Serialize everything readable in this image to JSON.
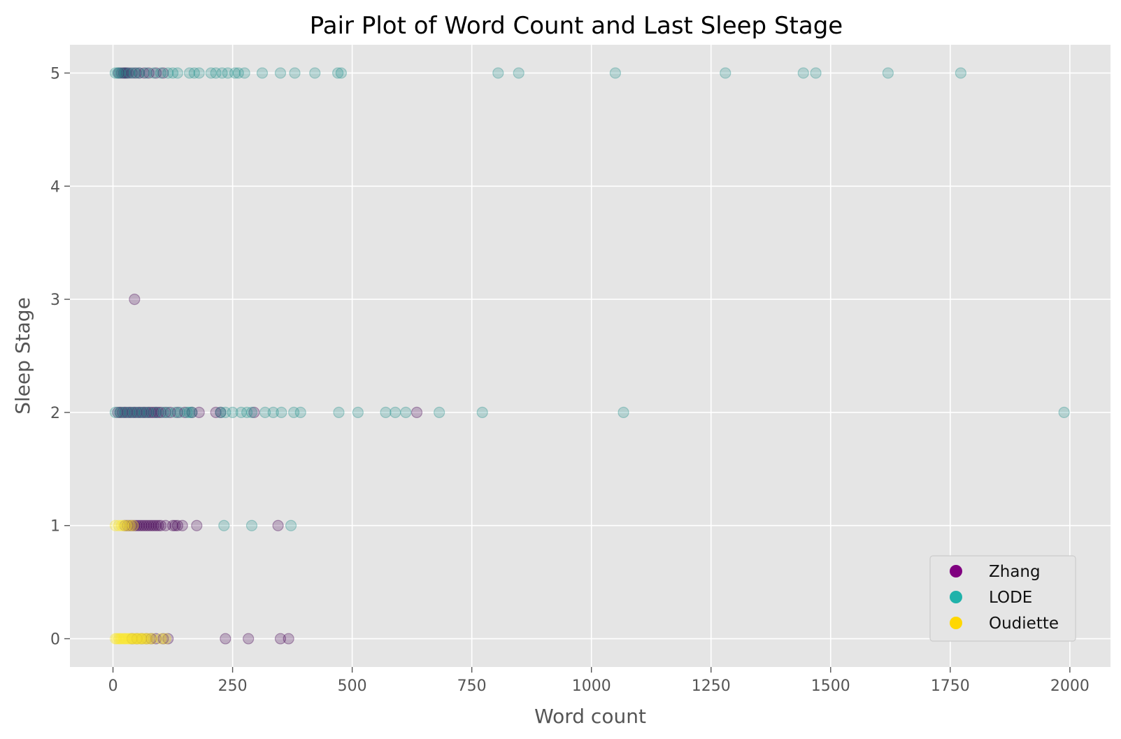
{
  "chart_data": {
    "type": "scatter",
    "title": "Pair Plot of Word Count and Last Sleep Stage",
    "xlabel": "Word count",
    "ylabel": "Sleep Stage",
    "xlim": [
      -90,
      2085
    ],
    "ylim": [
      -0.25,
      5.25
    ],
    "xticks": [
      0,
      250,
      500,
      750,
      1000,
      1250,
      1500,
      1750,
      2000
    ],
    "yticks": [
      0,
      1,
      2,
      3,
      4,
      5
    ],
    "grid": true,
    "background": "#e5e5e5",
    "legend_position": "lower-right",
    "point_alpha": 0.25,
    "series": [
      {
        "name": "Zhang",
        "color": "#800080",
        "marker_color": "#440154",
        "points": [
          [
            12,
            5
          ],
          [
            18,
            5
          ],
          [
            22,
            5
          ],
          [
            25,
            5
          ],
          [
            28,
            5
          ],
          [
            32,
            5
          ],
          [
            40,
            5
          ],
          [
            48,
            5
          ],
          [
            55,
            5
          ],
          [
            65,
            5
          ],
          [
            75,
            5
          ],
          [
            90,
            5
          ],
          [
            105,
            5
          ],
          [
            45,
            3
          ],
          [
            10,
            2
          ],
          [
            15,
            2
          ],
          [
            20,
            2
          ],
          [
            25,
            2
          ],
          [
            30,
            2
          ],
          [
            35,
            2
          ],
          [
            40,
            2
          ],
          [
            45,
            2
          ],
          [
            50,
            2
          ],
          [
            55,
            2
          ],
          [
            60,
            2
          ],
          [
            65,
            2
          ],
          [
            70,
            2
          ],
          [
            75,
            2
          ],
          [
            80,
            2
          ],
          [
            85,
            2
          ],
          [
            90,
            2
          ],
          [
            95,
            2
          ],
          [
            100,
            2
          ],
          [
            110,
            2
          ],
          [
            120,
            2
          ],
          [
            135,
            2
          ],
          [
            150,
            2
          ],
          [
            165,
            2
          ],
          [
            180,
            2
          ],
          [
            215,
            2
          ],
          [
            225,
            2
          ],
          [
            295,
            2
          ],
          [
            635,
            2
          ],
          [
            25,
            1
          ],
          [
            30,
            1
          ],
          [
            35,
            1
          ],
          [
            40,
            1
          ],
          [
            45,
            1
          ],
          [
            50,
            1
          ],
          [
            55,
            1
          ],
          [
            60,
            1
          ],
          [
            65,
            1
          ],
          [
            70,
            1
          ],
          [
            75,
            1
          ],
          [
            80,
            1
          ],
          [
            85,
            1
          ],
          [
            90,
            1
          ],
          [
            95,
            1
          ],
          [
            100,
            1
          ],
          [
            110,
            1
          ],
          [
            125,
            1
          ],
          [
            130,
            1
          ],
          [
            135,
            1
          ],
          [
            145,
            1
          ],
          [
            175,
            1
          ],
          [
            345,
            1
          ],
          [
            40,
            0
          ],
          [
            50,
            0
          ],
          [
            60,
            0
          ],
          [
            70,
            0
          ],
          [
            80,
            0
          ],
          [
            90,
            0
          ],
          [
            105,
            0
          ],
          [
            115,
            0
          ],
          [
            235,
            0
          ],
          [
            283,
            0
          ],
          [
            350,
            0
          ],
          [
            367,
            0
          ]
        ]
      },
      {
        "name": "LODE",
        "color": "#20b2aa",
        "marker_color": "#21918c",
        "points": [
          [
            5,
            5
          ],
          [
            10,
            5
          ],
          [
            15,
            5
          ],
          [
            25,
            5
          ],
          [
            35,
            5
          ],
          [
            45,
            5
          ],
          [
            55,
            5
          ],
          [
            70,
            5
          ],
          [
            85,
            5
          ],
          [
            100,
            5
          ],
          [
            115,
            5
          ],
          [
            125,
            5
          ],
          [
            135,
            5
          ],
          [
            160,
            5
          ],
          [
            170,
            5
          ],
          [
            180,
            5
          ],
          [
            205,
            5
          ],
          [
            215,
            5
          ],
          [
            228,
            5
          ],
          [
            240,
            5
          ],
          [
            255,
            5
          ],
          [
            262,
            5
          ],
          [
            275,
            5
          ],
          [
            312,
            5
          ],
          [
            350,
            5
          ],
          [
            380,
            5
          ],
          [
            422,
            5
          ],
          [
            470,
            5
          ],
          [
            477,
            5
          ],
          [
            805,
            5
          ],
          [
            848,
            5
          ],
          [
            1050,
            5
          ],
          [
            1280,
            5
          ],
          [
            1443,
            5
          ],
          [
            1469,
            5
          ],
          [
            1620,
            5
          ],
          [
            1772,
            5
          ],
          [
            5,
            2
          ],
          [
            15,
            2
          ],
          [
            25,
            2
          ],
          [
            35,
            2
          ],
          [
            45,
            2
          ],
          [
            55,
            2
          ],
          [
            65,
            2
          ],
          [
            75,
            2
          ],
          [
            90,
            2
          ],
          [
            105,
            2
          ],
          [
            115,
            2
          ],
          [
            130,
            2
          ],
          [
            140,
            2
          ],
          [
            155,
            2
          ],
          [
            160,
            2
          ],
          [
            165,
            2
          ],
          [
            225,
            2
          ],
          [
            235,
            2
          ],
          [
            250,
            2
          ],
          [
            268,
            2
          ],
          [
            280,
            2
          ],
          [
            290,
            2
          ],
          [
            318,
            2
          ],
          [
            335,
            2
          ],
          [
            352,
            2
          ],
          [
            378,
            2
          ],
          [
            392,
            2
          ],
          [
            472,
            2
          ],
          [
            512,
            2
          ],
          [
            570,
            2
          ],
          [
            590,
            2
          ],
          [
            612,
            2
          ],
          [
            682,
            2
          ],
          [
            772,
            2
          ],
          [
            1067,
            2
          ],
          [
            1988,
            2
          ],
          [
            232,
            1
          ],
          [
            290,
            1
          ],
          [
            372,
            1
          ]
        ]
      },
      {
        "name": "Oudiette",
        "color": "#ffd700",
        "marker_color": "#fde725",
        "points": [
          [
            5,
            1
          ],
          [
            12,
            1
          ],
          [
            18,
            1
          ],
          [
            22,
            1
          ],
          [
            28,
            1
          ],
          [
            35,
            1
          ],
          [
            42,
            1
          ],
          [
            5,
            0
          ],
          [
            8,
            0
          ],
          [
            12,
            0
          ],
          [
            15,
            0
          ],
          [
            18,
            0
          ],
          [
            22,
            0
          ],
          [
            25,
            0
          ],
          [
            28,
            0
          ],
          [
            32,
            0
          ],
          [
            35,
            0
          ],
          [
            38,
            0
          ],
          [
            42,
            0
          ],
          [
            45,
            0
          ],
          [
            48,
            0
          ],
          [
            52,
            0
          ],
          [
            55,
            0
          ],
          [
            58,
            0
          ],
          [
            62,
            0
          ],
          [
            66,
            0
          ],
          [
            70,
            0
          ],
          [
            75,
            0
          ],
          [
            82,
            0
          ],
          [
            100,
            0
          ],
          [
            110,
            0
          ]
        ]
      }
    ]
  }
}
